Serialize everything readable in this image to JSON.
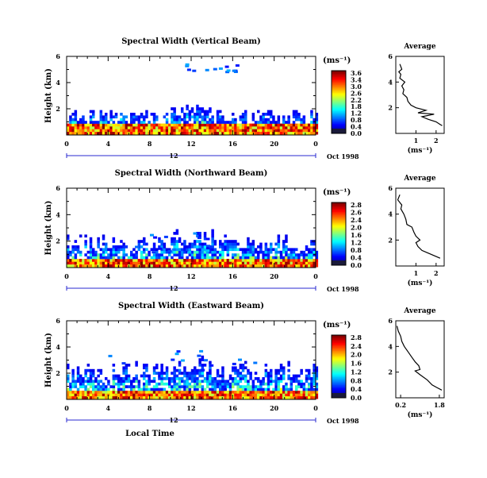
{
  "chart_data": [
    {
      "type": "heatmap",
      "title": "Spectral Width (Vertical Beam)",
      "ylabel": "Height (km)",
      "xlim": [
        0,
        24
      ],
      "ylim": [
        0,
        6
      ],
      "xticks": [
        "0",
        "4",
        "8",
        "12",
        "16",
        "20",
        "0"
      ],
      "yticks": [
        "2",
        "4",
        "6"
      ],
      "date_tick": "12",
      "date_label": "Oct 1998",
      "colorbar": {
        "unit": "(ms⁻¹)",
        "ticks": [
          "3.6",
          "3.4",
          "3.0",
          "2.6",
          "2.2",
          "1.8",
          "1.2",
          "0.8",
          "0.4",
          "0.0"
        ]
      },
      "pattern": {
        "base_height_km": 0.8,
        "echo_top_km": 1.9,
        "high_echo_hours": [
          13.6,
          16.5
        ],
        "high_echo_km": [
          4.8,
          5.5
        ]
      },
      "profile": {
        "title": "Average",
        "xlabel": "(ms⁻¹)",
        "xticks": [
          "1",
          "2"
        ],
        "xlim": [
          0,
          2.4
        ],
        "yticks": [
          "2",
          "4",
          "6"
        ],
        "ylim": [
          0,
          6
        ],
        "points": [
          [
            0.2,
            5.4
          ],
          [
            0.3,
            5.0
          ],
          [
            0.15,
            4.8
          ],
          [
            0.25,
            4.6
          ],
          [
            0.2,
            4.3
          ],
          [
            0.45,
            4.0
          ],
          [
            0.3,
            3.7
          ],
          [
            0.4,
            3.4
          ],
          [
            0.35,
            3.1
          ],
          [
            0.55,
            2.8
          ],
          [
            0.6,
            2.5
          ],
          [
            0.75,
            2.2
          ],
          [
            1.0,
            2.0
          ],
          [
            1.5,
            1.8
          ],
          [
            1.1,
            1.6
          ],
          [
            1.9,
            1.5
          ],
          [
            1.3,
            1.3
          ],
          [
            1.6,
            1.1
          ],
          [
            2.0,
            0.9
          ],
          [
            2.2,
            0.7
          ],
          [
            2.3,
            0.6
          ]
        ]
      }
    },
    {
      "type": "heatmap",
      "title": "Spectral Width (Northward Beam)",
      "ylabel": "Height (km)",
      "xlim": [
        0,
        24
      ],
      "ylim": [
        0,
        6
      ],
      "xticks": [
        "0",
        "4",
        "8",
        "12",
        "16",
        "20",
        "0"
      ],
      "yticks": [
        "2",
        "4",
        "6"
      ],
      "date_tick": "12",
      "date_label": "Oct 1998",
      "colorbar": {
        "unit": "(ms⁻¹)",
        "ticks": [
          "2.8",
          "2.6",
          "2.4",
          "2.0",
          "1.6",
          "1.2",
          "0.8",
          "0.4",
          "0.0"
        ]
      },
      "pattern": {
        "base_height_km": 0.6,
        "echo_top_km": 2.4,
        "high_echo_hours": [
          11.5,
          13.5
        ],
        "high_echo_km": [
          2.5,
          3.0
        ]
      },
      "profile": {
        "title": "Average",
        "xlabel": "(ms⁻¹)",
        "xticks": [
          "1",
          "2"
        ],
        "xlim": [
          0,
          2.4
        ],
        "yticks": [
          "2",
          "4",
          "6"
        ],
        "ylim": [
          0,
          6
        ],
        "points": [
          [
            0.2,
            5.5
          ],
          [
            0.1,
            5.1
          ],
          [
            0.3,
            4.7
          ],
          [
            0.25,
            4.4
          ],
          [
            0.4,
            4.0
          ],
          [
            0.5,
            3.6
          ],
          [
            0.55,
            3.2
          ],
          [
            0.8,
            3.0
          ],
          [
            0.9,
            2.6
          ],
          [
            1.0,
            2.3
          ],
          [
            1.2,
            2.0
          ],
          [
            1.0,
            1.8
          ],
          [
            1.1,
            1.5
          ],
          [
            1.3,
            1.2
          ],
          [
            1.6,
            1.0
          ],
          [
            1.9,
            0.8
          ],
          [
            2.2,
            0.6
          ]
        ]
      }
    },
    {
      "type": "heatmap",
      "title": "Spectral Width (Eastward Beam)",
      "ylabel": "Height (km)",
      "xlabel": "Local Time",
      "xlim": [
        0,
        24
      ],
      "ylim": [
        0,
        6
      ],
      "xticks": [
        "0",
        "4",
        "8",
        "12",
        "16",
        "20",
        "0"
      ],
      "yticks": [
        "2",
        "4",
        "6"
      ],
      "date_tick": "12",
      "date_label": "Oct 1998",
      "colorbar": {
        "unit": "(ms⁻¹)",
        "ticks": [
          "2.8",
          "2.4",
          "2.0",
          "1.6",
          "1.2",
          "0.8",
          "0.4",
          "0.0"
        ]
      },
      "pattern": {
        "base_height_km": 0.5,
        "echo_top_km": 2.8,
        "high_echo_hours": [
          9.0,
          18.5
        ],
        "high_echo_km": [
          3.6,
          4.2
        ]
      },
      "profile": {
        "title": "Average",
        "xlabel": "(ms⁻¹)",
        "xticks": [
          "0.2",
          "1.8"
        ],
        "xlim": [
          0,
          2.0
        ],
        "yticks": [
          "2",
          "4",
          "6"
        ],
        "ylim": [
          0,
          6
        ],
        "points": [
          [
            0.05,
            5.6
          ],
          [
            0.1,
            5.2
          ],
          [
            0.2,
            4.8
          ],
          [
            0.25,
            4.4
          ],
          [
            0.35,
            4.0
          ],
          [
            0.5,
            3.6
          ],
          [
            0.65,
            3.2
          ],
          [
            0.8,
            2.8
          ],
          [
            0.95,
            2.5
          ],
          [
            1.0,
            2.2
          ],
          [
            0.8,
            2.1
          ],
          [
            1.0,
            1.8
          ],
          [
            1.3,
            1.4
          ],
          [
            1.5,
            1.0
          ],
          [
            1.7,
            0.8
          ],
          [
            1.9,
            0.6
          ]
        ]
      }
    }
  ]
}
